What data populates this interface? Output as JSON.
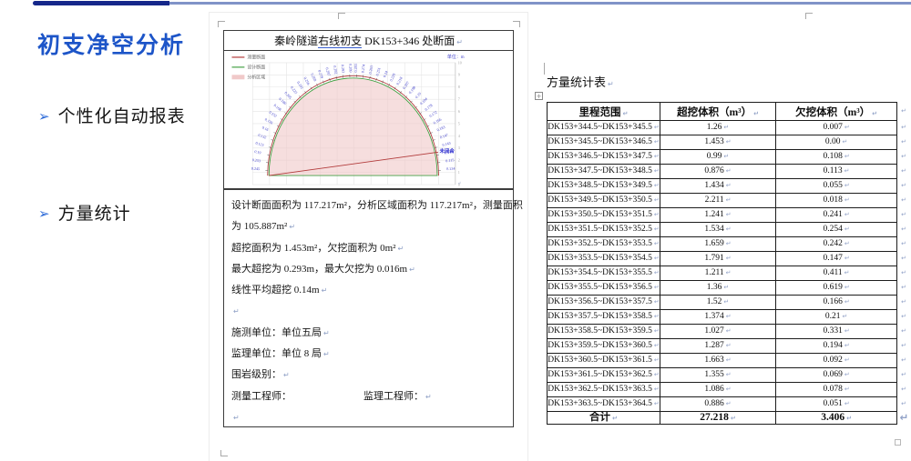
{
  "header": {
    "accent_dark": "#15278a",
    "accent_light": "#8093c8"
  },
  "sidebar": {
    "title": "初支净空分析",
    "bullet_glyph": "➢",
    "bullets": [
      {
        "label": "个性化自动报表"
      },
      {
        "label": "方量统计"
      }
    ]
  },
  "report": {
    "title": {
      "prefix": "秦岭隧道",
      "underlined": "右线初支",
      "suffix": " DK153+346 处断面"
    },
    "lines": [
      {
        "t": "设计断面面积为 117.217m²，分析区域面积为 117.217m²，测量面积",
        "mark": false
      },
      {
        "t": "为 105.887m²",
        "mark": true
      },
      {
        "t": "超挖面积为 1.453m²，欠挖面积为 0m²",
        "mark": true
      },
      {
        "t": "最大超挖为 0.293m，最大欠挖为 0.016m",
        "mark": true
      },
      {
        "t": "线性平均超挖 0.14m",
        "mark": true
      },
      {
        "t": "",
        "mark": true
      },
      {
        "t": "施测单位：单位五局",
        "mark": true
      },
      {
        "t": "监理单位：单位 8 局",
        "mark": true
      },
      {
        "t": "围岩级别：",
        "mark": true
      },
      {
        "t": "测量工程师：",
        "t2": "监理工程师：",
        "mark": true
      },
      {
        "t": "",
        "mark": true
      }
    ]
  },
  "chart_data": {
    "type": "area",
    "title": "秦岭隧道右线初支 DK153+346 处断面",
    "unit_label": "单位：m",
    "legend": [
      {
        "label": "测量断面",
        "color": "#b23b3b",
        "kind": "line"
      },
      {
        "label": "设计断面",
        "color": "#44a044",
        "kind": "line"
      },
      {
        "label": "分析区域",
        "color": "#f0c9c9",
        "kind": "fill"
      }
    ],
    "design_area_m2": 117.217,
    "analysis_area_m2": 117.217,
    "measured_area_m2": 105.887,
    "overbreak_area_m2": 1.453,
    "underbreak_area_m2": 0,
    "max_overbreak_m": 0.293,
    "max_underbreak_m": 0.016,
    "linear_avg_overbreak_m": 0.14,
    "unclosed_label": "未闭合",
    "axis_ticks": [
      "10",
      "9",
      "8",
      "7",
      "6",
      "5",
      "4",
      "3",
      "2",
      "1",
      "0"
    ],
    "arc_values": [
      0.245,
      0.253,
      0.19,
      0.123,
      0.132,
      0.16,
      0.136,
      0.152,
      0.168,
      0.186,
      0.205,
      0.223,
      0.241,
      0.256,
      0.269,
      0.279,
      0.287,
      0.292,
      0.293,
      0.289,
      0.283,
      0.274,
      0.263,
      0.251,
      0.24,
      0.229,
      0.218,
      0.207,
      0.198,
      0.19,
      0.184,
      0.178,
      0.172,
      0.166,
      0.183,
      0.147,
      0.143,
      0.149,
      0.115,
      0.134
    ]
  },
  "volume_table": {
    "caption": "方量统计表",
    "columns": [
      "里程范围",
      "超挖体积（m³）",
      "欠挖体积（m³）"
    ],
    "rows": [
      [
        "DK153+344.5~DK153+345.5",
        "1.26",
        "0.007"
      ],
      [
        "DK153+345.5~DK153+346.5",
        "1.453",
        "0.00"
      ],
      [
        "DK153+346.5~DK153+347.5",
        "0.99",
        "0.108"
      ],
      [
        "DK153+347.5~DK153+348.5",
        "0.876",
        "0.113"
      ],
      [
        "DK153+348.5~DK153+349.5",
        "1.434",
        "0.055"
      ],
      [
        "DK153+349.5~DK153+350.5",
        "2.211",
        "0.018"
      ],
      [
        "DK153+350.5~DK153+351.5",
        "1.241",
        "0.241"
      ],
      [
        "DK153+351.5~DK153+352.5",
        "1.534",
        "0.254"
      ],
      [
        "DK153+352.5~DK153+353.5",
        "1.659",
        "0.242"
      ],
      [
        "DK153+353.5~DK153+354.5",
        "1.791",
        "0.147"
      ],
      [
        "DK153+354.5~DK153+355.5",
        "1.211",
        "0.411"
      ],
      [
        "DK153+355.5~DK153+356.5",
        "1.36",
        "0.619"
      ],
      [
        "DK153+356.5~DK153+357.5",
        "1.52",
        "0.166"
      ],
      [
        "DK153+357.5~DK153+358.5",
        "1.374",
        "0.21"
      ],
      [
        "DK153+358.5~DK153+359.5",
        "1.027",
        "0.331"
      ],
      [
        "DK153+359.5~DK153+360.5",
        "1.287",
        "0.194"
      ],
      [
        "DK153+360.5~DK153+361.5",
        "1.663",
        "0.092"
      ],
      [
        "DK153+361.5~DK153+362.5",
        "1.355",
        "0.069"
      ],
      [
        "DK153+362.5~DK153+363.5",
        "1.086",
        "0.078"
      ],
      [
        "DK153+363.5~DK153+364.5",
        "0.886",
        "0.051"
      ]
    ],
    "total": [
      "合计",
      "27.218",
      "3.406"
    ]
  },
  "marks": {
    "pilcrow": "↵"
  }
}
